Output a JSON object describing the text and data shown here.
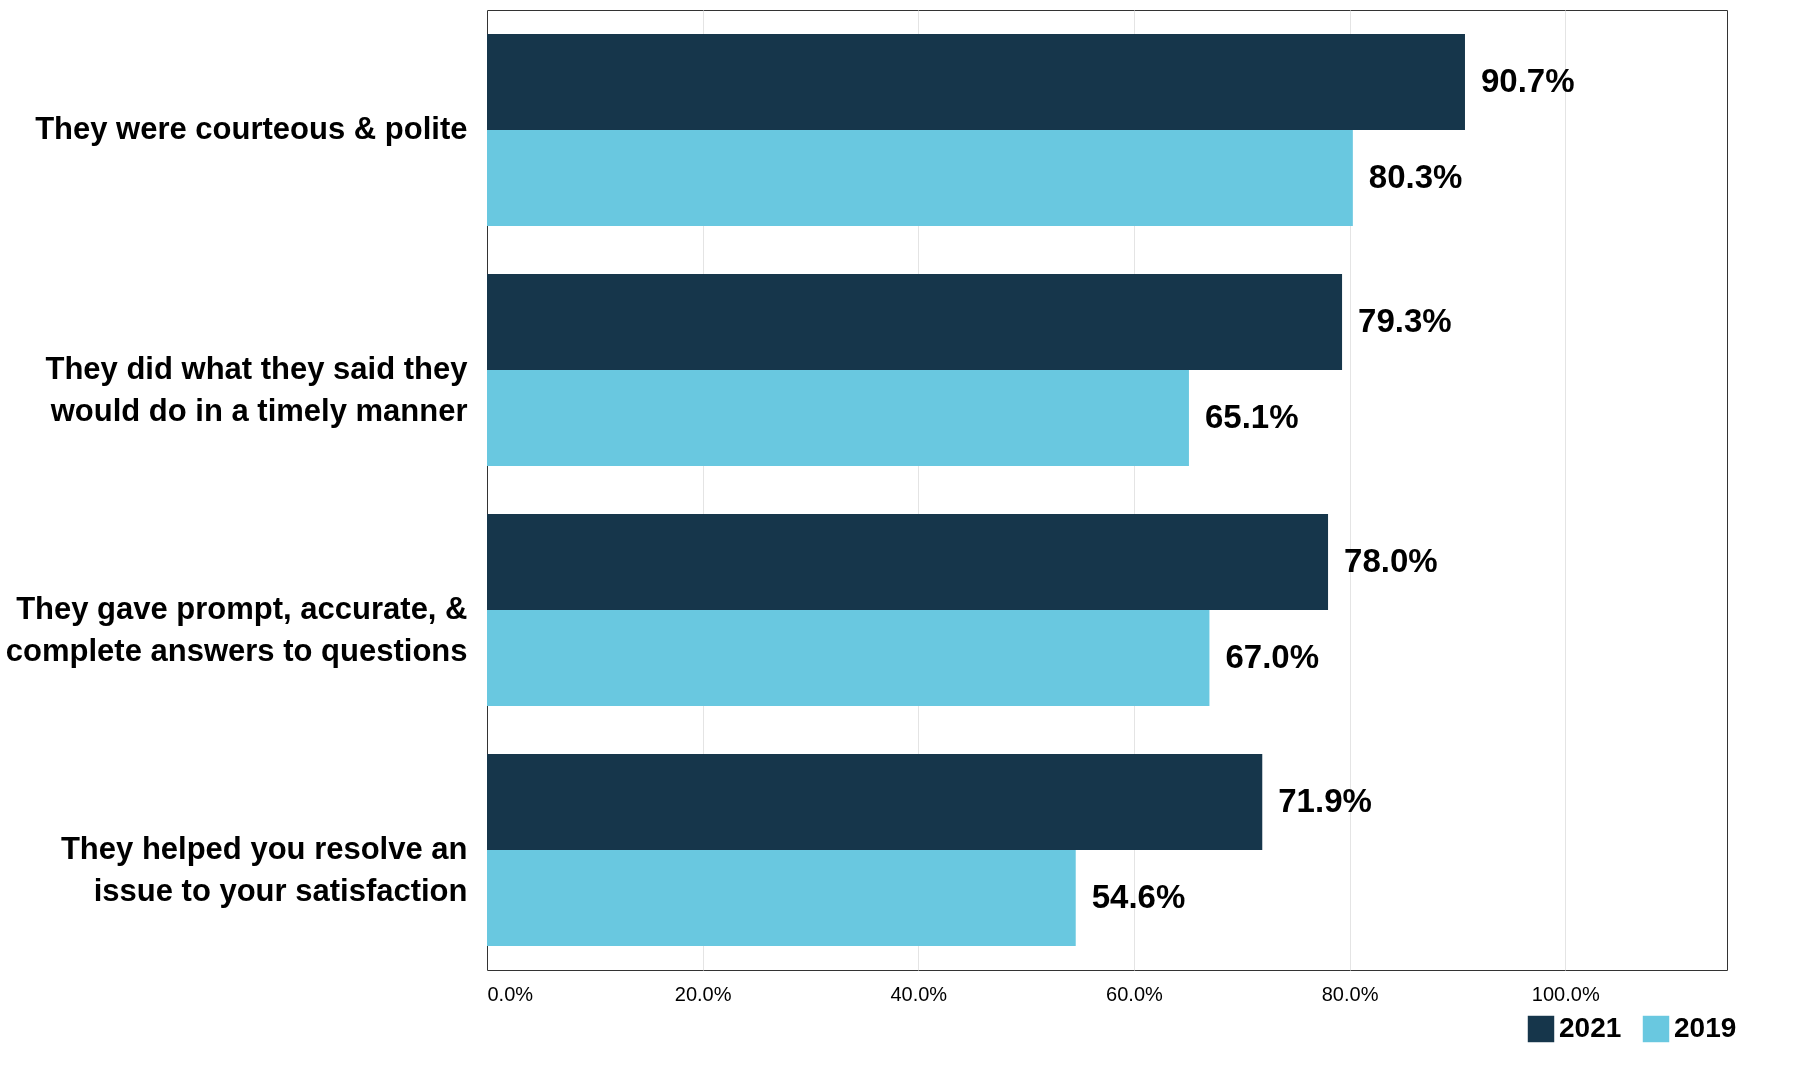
{
  "chart_data": {
    "type": "bar",
    "orientation": "horizontal",
    "categories": [
      "They were courteous & polite",
      "They did what they said they\nwould do in a timely manner",
      "They gave prompt, accurate, &\ncomplete answers to questions",
      "They helped you resolve an\nissue to your satisfaction"
    ],
    "series": [
      {
        "name": "2021",
        "color": "#16364b",
        "values": [
          90.7,
          79.3,
          78.0,
          71.9
        ],
        "value_labels": [
          "90.7%",
          "79.3%",
          "78.0%",
          "71.9%"
        ]
      },
      {
        "name": "2019",
        "color": "#69c8e0",
        "values": [
          80.3,
          65.1,
          67.0,
          54.6
        ],
        "value_labels": [
          "80.3%",
          "65.1%",
          "67.0%",
          "54.6%"
        ]
      }
    ],
    "xlim": [
      0,
      115
    ],
    "xticks": [
      {
        "value": 0,
        "label": "0.0%"
      },
      {
        "value": 20,
        "label": "20.0%"
      },
      {
        "value": 40,
        "label": "40.0%"
      },
      {
        "value": 60,
        "label": "60.0%"
      },
      {
        "value": 80,
        "label": "80.0%"
      },
      {
        "value": 100,
        "label": "100.0%"
      }
    ],
    "grid": "x",
    "legend": "bottom right"
  }
}
